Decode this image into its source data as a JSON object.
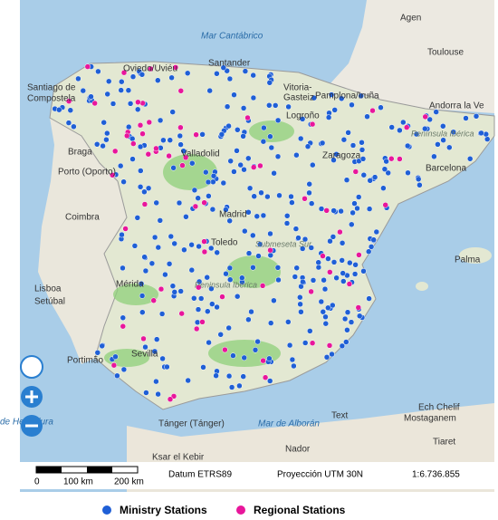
{
  "map": {
    "seas": [
      "Mar Cantábrico",
      "Mar de Alborán",
      "de Herradura"
    ],
    "places": [
      "Agen",
      "Toulouse",
      "Oviedo/Uviéu",
      "Santander",
      "Santiago de",
      "Compostela",
      "Vitoria-",
      "Gasteiz",
      "Pamplona/Iruña",
      "Logroño",
      "Andorra la Ve",
      "Braga",
      "Porto (Oporto)",
      "Zaragoza",
      "Barcelona",
      "Valladolid",
      "Coimbra",
      "Madrid",
      "Toledo",
      "Palma",
      "Lisboa",
      "Setúbal",
      "Mérida",
      "Portimão",
      "Sevilla",
      "Tánger (Tánger)",
      "Ksar el Kebir",
      "Nador",
      "Ech Chelif",
      "Mostaganem",
      "Tiaret",
      "Text"
    ],
    "regions": [
      "Península Ibérica",
      "Submeseta Sur",
      "Peninsula Ibérica"
    ]
  },
  "scale_bar": {
    "ticks": [
      "0",
      "100 km",
      "200 km"
    ],
    "datum": "Datum ETRS89",
    "projection": "Proyección UTM 30N",
    "scale": "1:6.736.855"
  },
  "legend": {
    "items": [
      {
        "name": "Ministry Stations",
        "color": "#1f5fd6"
      },
      {
        "name": "Regional Stations",
        "color": "#e8169b"
      }
    ]
  }
}
